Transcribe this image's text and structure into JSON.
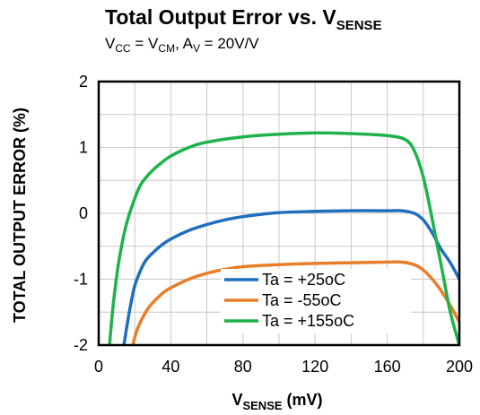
{
  "chart_data": {
    "type": "line",
    "title": {
      "main": "Total Output Error vs. V",
      "sub": "SENSE"
    },
    "subtitle": {
      "vcc": "V",
      "vcc_sub": "CC",
      "eq": " = V",
      "vcm_sub": "CM",
      "av_pre": ",  A",
      "av_sub": "V",
      "av_post": " = 20V/V"
    },
    "xlabel": {
      "main": "V",
      "sub": "SENSE",
      "post": " (mV)"
    },
    "ylabel": "TOTAL OUTPUT ERROR (%)",
    "xlim": [
      0,
      200
    ],
    "ylim": [
      -2,
      2
    ],
    "xticks": [
      0,
      40,
      80,
      120,
      160,
      200
    ],
    "yticks": [
      -2,
      -1,
      0,
      1,
      2
    ],
    "grid": true,
    "legend_position": "bottom-right",
    "series": [
      {
        "name": "Ta = +25oC",
        "color": "#1f6fbf",
        "x": [
          14,
          16,
          18,
          20,
          23,
          26,
          30,
          35,
          40,
          50,
          60,
          70,
          80,
          100,
          120,
          140,
          160,
          168,
          175,
          180,
          185,
          190,
          195,
          200
        ],
        "y": [
          -2.0,
          -1.65,
          -1.35,
          -1.1,
          -0.88,
          -0.72,
          -0.6,
          -0.48,
          -0.39,
          -0.26,
          -0.17,
          -0.1,
          -0.05,
          0.01,
          0.03,
          0.04,
          0.04,
          0.04,
          0.0,
          -0.1,
          -0.3,
          -0.55,
          -0.75,
          -1.0
        ]
      },
      {
        "name": "Ta = -55oC",
        "color": "#e87d2a",
        "x": [
          19,
          20,
          22,
          25,
          28,
          32,
          36,
          40,
          50,
          60,
          70,
          80,
          100,
          120,
          140,
          160,
          168,
          175,
          180,
          185,
          190,
          195,
          200
        ],
        "y": [
          -2.0,
          -1.88,
          -1.72,
          -1.55,
          -1.42,
          -1.3,
          -1.2,
          -1.13,
          -1.0,
          -0.91,
          -0.85,
          -0.81,
          -0.78,
          -0.76,
          -0.75,
          -0.74,
          -0.74,
          -0.78,
          -0.86,
          -1.0,
          -1.18,
          -1.4,
          -1.65
        ]
      },
      {
        "name": "Ta = +155oC",
        "color": "#1fb24a",
        "x": [
          6,
          8,
          10,
          12,
          15,
          19,
          23,
          28,
          34,
          40,
          50,
          60,
          80,
          100,
          120,
          140,
          160,
          170,
          175,
          180,
          185,
          190,
          195,
          200
        ],
        "y": [
          -2.0,
          -1.4,
          -0.95,
          -0.6,
          -0.2,
          0.15,
          0.42,
          0.6,
          0.75,
          0.87,
          1.0,
          1.08,
          1.16,
          1.2,
          1.22,
          1.21,
          1.18,
          1.12,
          0.95,
          0.55,
          -0.1,
          -0.8,
          -1.5,
          -2.0
        ]
      }
    ]
  }
}
